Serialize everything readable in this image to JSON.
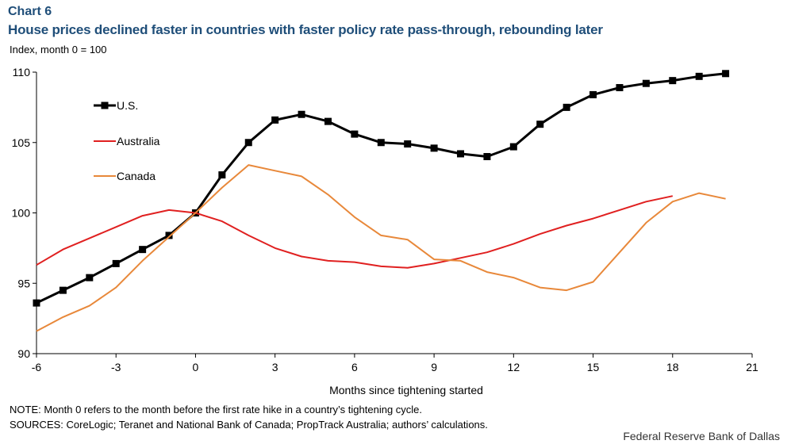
{
  "header": {
    "chart_number": "Chart 6",
    "title": "House prices declined faster in countries with faster policy rate pass-through, rebounding later",
    "y_unit": "Index, month 0 = 100"
  },
  "footer": {
    "note": "NOTE: Month 0 refers to the month before the first rate hike in a country’s tightening cycle.",
    "sources": "SOURCES: CoreLogic; Teranet and National Bank of Canada; PropTrack Australia; authors’ calculations.",
    "credit": "Federal Reserve Bank of Dallas"
  },
  "chart_data": {
    "type": "line",
    "title": "House prices declined faster in countries with faster policy rate pass-through, rebounding later",
    "xlabel": "Months since tightening started",
    "ylabel": "Index, month 0 = 100",
    "xlim": [
      -6,
      21
    ],
    "ylim": [
      90,
      110
    ],
    "x_ticks": [
      -6,
      -3,
      0,
      3,
      6,
      9,
      12,
      15,
      18,
      21
    ],
    "y_ticks": [
      90,
      95,
      100,
      105,
      110
    ],
    "grid": false,
    "legend_position": "top-left",
    "series": [
      {
        "name": "U.S.",
        "color": "#000000",
        "markers": true,
        "x": [
          -6,
          -5,
          -4,
          -3,
          -2,
          -1,
          0,
          1,
          2,
          3,
          4,
          5,
          6,
          7,
          8,
          9,
          10,
          11,
          12,
          13,
          14,
          15,
          16,
          17,
          18,
          19,
          20
        ],
        "values": [
          93.6,
          94.5,
          95.4,
          96.4,
          97.4,
          98.4,
          100.0,
          102.7,
          105.0,
          106.6,
          107.0,
          106.5,
          105.6,
          105.0,
          104.9,
          104.6,
          104.2,
          104.0,
          104.7,
          106.3,
          107.5,
          108.4,
          108.9,
          109.2,
          109.4,
          109.7,
          109.9
        ]
      },
      {
        "name": "Australia",
        "color": "#e02020",
        "markers": false,
        "x": [
          -6,
          -5,
          -4,
          -3,
          -2,
          -1,
          0,
          1,
          2,
          3,
          4,
          5,
          6,
          7,
          8,
          9,
          10,
          11,
          12,
          13,
          14,
          15,
          16,
          17,
          18
        ],
        "values": [
          96.3,
          97.4,
          98.2,
          99.0,
          99.8,
          100.2,
          100.0,
          99.4,
          98.4,
          97.5,
          96.9,
          96.6,
          96.5,
          96.2,
          96.1,
          96.4,
          96.8,
          97.2,
          97.8,
          98.5,
          99.1,
          99.6,
          100.2,
          100.8,
          101.2
        ]
      },
      {
        "name": "Canada",
        "color": "#e8883a",
        "markers": false,
        "x": [
          -6,
          -5,
          -4,
          -3,
          -2,
          -1,
          0,
          1,
          2,
          3,
          4,
          5,
          6,
          7,
          8,
          9,
          10,
          11,
          12,
          13,
          14,
          15,
          16,
          17,
          18,
          19,
          20
        ],
        "values": [
          91.6,
          92.6,
          93.4,
          94.7,
          96.6,
          98.3,
          100.0,
          101.8,
          103.4,
          103.0,
          102.6,
          101.3,
          99.7,
          98.4,
          98.1,
          96.7,
          96.6,
          95.8,
          95.4,
          94.7,
          94.5,
          95.1,
          97.2,
          99.3,
          100.8,
          101.4,
          101.0
        ]
      }
    ]
  }
}
